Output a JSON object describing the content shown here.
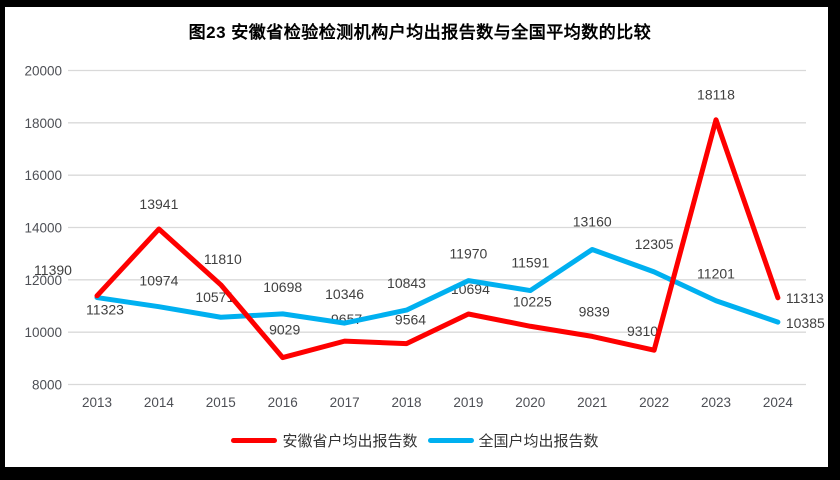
{
  "title": "图23 安徽省检验检测机构户均出报告数与全国平均数的比较",
  "chart_data": {
    "type": "line",
    "categories": [
      "2013",
      "2014",
      "2015",
      "2016",
      "2017",
      "2018",
      "2019",
      "2020",
      "2021",
      "2022",
      "2023",
      "2024"
    ],
    "series": [
      {
        "name": "安徽省户均出报告数",
        "color": "#FE0000",
        "values": [
          11390,
          13941,
          11810,
          9029,
          9657,
          9564,
          10694,
          10225,
          9839,
          9310,
          18118,
          11313
        ]
      },
      {
        "name": "全国户均出报告数",
        "color": "#00B0F0",
        "values": [
          11323,
          10974,
          10571,
          10698,
          10346,
          10843,
          11970,
          11591,
          13160,
          12305,
          11201,
          10385
        ]
      }
    ],
    "ylim": [
      8000,
      20000
    ],
    "yticks": [
      8000,
      10000,
      12000,
      14000,
      16000,
      18000,
      20000
    ],
    "grid": "horizontal",
    "data_labels": true,
    "legend_position": "bottom"
  },
  "colors": {
    "gridline": "#D9D9D9",
    "axis_text": "#4D4F55",
    "data_label_text": "#404040",
    "frame": "#000000",
    "background": "#FFFFFF"
  }
}
